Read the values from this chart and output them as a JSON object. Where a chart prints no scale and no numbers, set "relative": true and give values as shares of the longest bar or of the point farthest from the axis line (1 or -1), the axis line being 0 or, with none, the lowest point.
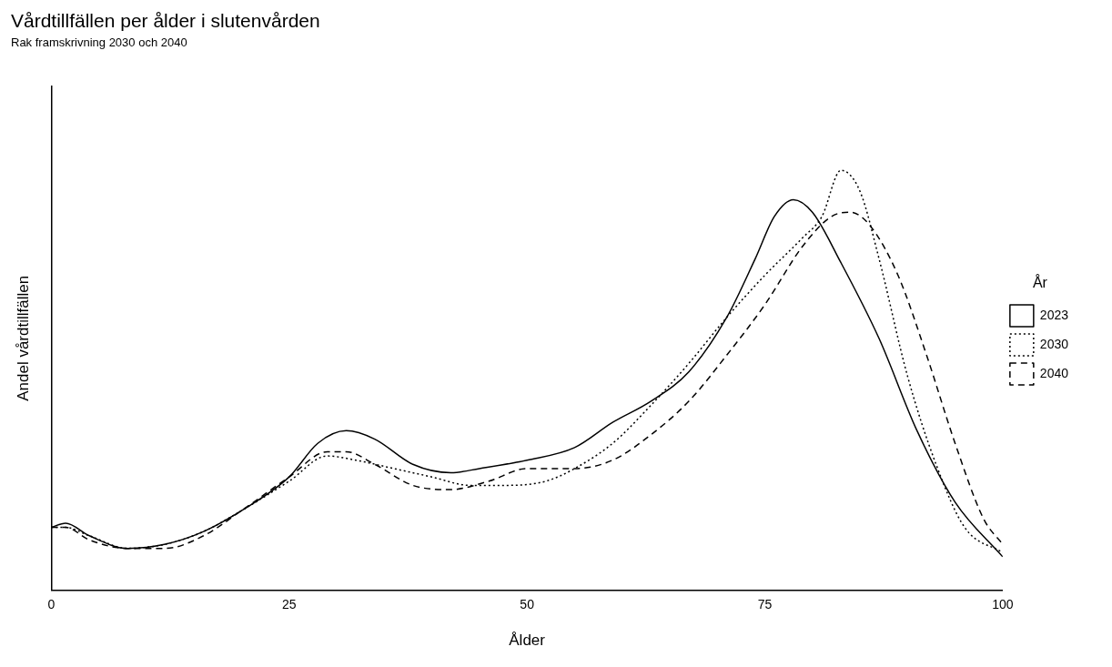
{
  "chart_data": {
    "type": "line",
    "title": "Vårdtillfällen per ålder i slutenvården",
    "subtitle": "Rak framskrivning 2030 och 2040",
    "xlabel": "Ålder",
    "ylabel": "Andel vårdtillfällen",
    "legend_title": "År",
    "legend": "right",
    "grid": false,
    "relative": true,
    "marker": "none",
    "xlim": [
      0,
      100
    ],
    "xticks": [
      0,
      25,
      50,
      75,
      100
    ],
    "series": [
      {
        "name": "2023",
        "color": "#000000",
        "line_style": "solid",
        "x": [
          0,
          1.5,
          4,
          8,
          12,
          16,
          20,
          25,
          28,
          31,
          34,
          38,
          42,
          45,
          50,
          55,
          59,
          63,
          67,
          71,
          74,
          76,
          78,
          80,
          83,
          87,
          91,
          95,
          100
        ],
        "values": [
          0.15,
          0.16,
          0.13,
          0.1,
          0.11,
          0.14,
          0.19,
          0.27,
          0.35,
          0.38,
          0.36,
          0.3,
          0.28,
          0.29,
          0.31,
          0.34,
          0.4,
          0.45,
          0.52,
          0.65,
          0.79,
          0.89,
          0.93,
          0.9,
          0.78,
          0.6,
          0.38,
          0.21,
          0.08
        ]
      },
      {
        "name": "2030",
        "color": "#000000",
        "line_style": "dotted",
        "x": [
          0,
          1.5,
          4,
          8,
          12,
          16,
          20,
          25,
          29,
          32,
          36,
          40,
          44,
          48,
          52,
          55,
          59,
          63,
          67,
          71,
          75,
          79,
          81,
          83,
          85,
          87,
          90,
          93,
          96,
          100
        ],
        "values": [
          0.15,
          0.15,
          0.13,
          0.1,
          0.11,
          0.14,
          0.19,
          0.26,
          0.32,
          0.31,
          0.29,
          0.27,
          0.25,
          0.25,
          0.26,
          0.29,
          0.35,
          0.44,
          0.54,
          0.65,
          0.75,
          0.84,
          0.89,
          1,
          0.95,
          0.79,
          0.51,
          0.3,
          0.15,
          0.09
        ]
      },
      {
        "name": "2040",
        "color": "#000000",
        "line_style": "dashed",
        "x": [
          0,
          1.5,
          4,
          8,
          12,
          16,
          20,
          25,
          29,
          31,
          34,
          38,
          42,
          46,
          50,
          55,
          59,
          63,
          67,
          71,
          75,
          79,
          82,
          84,
          86,
          89,
          92,
          95,
          98,
          100
        ],
        "values": [
          0.15,
          0.15,
          0.12,
          0.1,
          0.1,
          0.13,
          0.19,
          0.27,
          0.33,
          0.33,
          0.3,
          0.25,
          0.24,
          0.26,
          0.29,
          0.29,
          0.31,
          0.37,
          0.45,
          0.56,
          0.68,
          0.82,
          0.89,
          0.9,
          0.87,
          0.75,
          0.56,
          0.35,
          0.17,
          0.11
        ]
      }
    ]
  }
}
